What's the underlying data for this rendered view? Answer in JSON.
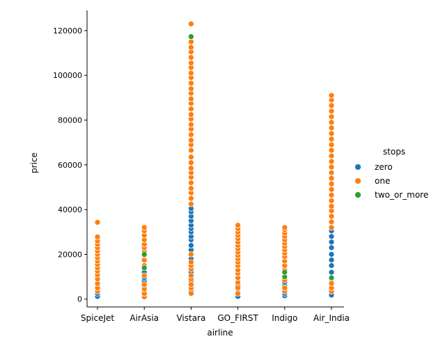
{
  "chart_data": {
    "type": "scatter",
    "title": "",
    "xlabel": "airline",
    "ylabel": "price",
    "categories": [
      "SpiceJet",
      "AirAsia",
      "Vistara",
      "GO_FIRST",
      "Indigo",
      "Air_India"
    ],
    "ylim": [
      -3500,
      129000
    ],
    "yticks": [
      0,
      20000,
      40000,
      60000,
      80000,
      100000,
      120000
    ],
    "ytick_labels": [
      "0",
      "20000",
      "40000",
      "60000",
      "80000",
      "100000",
      "120000"
    ],
    "grid": false,
    "legend": {
      "title": "stops",
      "placement": "right",
      "entries": [
        "zero",
        "one",
        "two_or_more"
      ]
    },
    "series": [
      {
        "name": "zero",
        "color": "#1f77b4",
        "points": [
          {
            "x": "SpiceJet",
            "y": 1200
          },
          {
            "x": "SpiceJet",
            "y": 2500
          },
          {
            "x": "SpiceJet",
            "y": 4500
          },
          {
            "x": "SpiceJet",
            "y": 6000
          },
          {
            "x": "SpiceJet",
            "y": 7500
          },
          {
            "x": "SpiceJet",
            "y": 8800
          },
          {
            "x": "SpiceJet",
            "y": 10000
          },
          {
            "x": "AirAsia",
            "y": 1600
          },
          {
            "x": "AirAsia",
            "y": 3500
          },
          {
            "x": "AirAsia",
            "y": 5500
          },
          {
            "x": "AirAsia",
            "y": 7000
          },
          {
            "x": "AirAsia",
            "y": 8000
          },
          {
            "x": "AirAsia",
            "y": 9500
          },
          {
            "x": "AirAsia",
            "y": 12000
          },
          {
            "x": "Vistara",
            "y": 3500
          },
          {
            "x": "Vistara",
            "y": 8000
          },
          {
            "x": "Vistara",
            "y": 12000
          },
          {
            "x": "Vistara",
            "y": 18000
          },
          {
            "x": "Vistara",
            "y": 22000
          },
          {
            "x": "Vistara",
            "y": 24000
          },
          {
            "x": "Vistara",
            "y": 26500
          },
          {
            "x": "Vistara",
            "y": 28000
          },
          {
            "x": "Vistara",
            "y": 30000
          },
          {
            "x": "Vistara",
            "y": 31500
          },
          {
            "x": "Vistara",
            "y": 33000
          },
          {
            "x": "Vistara",
            "y": 35000
          },
          {
            "x": "Vistara",
            "y": 37000
          },
          {
            "x": "Vistara",
            "y": 39000
          },
          {
            "x": "Vistara",
            "y": 40500
          },
          {
            "x": "GO_FIRST",
            "y": 1200
          },
          {
            "x": "GO_FIRST",
            "y": 3000
          },
          {
            "x": "GO_FIRST",
            "y": 4500
          },
          {
            "x": "GO_FIRST",
            "y": 6000
          },
          {
            "x": "Indigo",
            "y": 1500
          },
          {
            "x": "Indigo",
            "y": 2500
          },
          {
            "x": "Indigo",
            "y": 4500
          },
          {
            "x": "Indigo",
            "y": 6000
          },
          {
            "x": "Indigo",
            "y": 7500
          },
          {
            "x": "Air_India",
            "y": 1800
          },
          {
            "x": "Air_India",
            "y": 5500
          },
          {
            "x": "Air_India",
            "y": 9000
          },
          {
            "x": "Air_India",
            "y": 12000
          },
          {
            "x": "Air_India",
            "y": 15000
          },
          {
            "x": "Air_India",
            "y": 17500
          },
          {
            "x": "Air_India",
            "y": 20000
          },
          {
            "x": "Air_India",
            "y": 23000
          },
          {
            "x": "Air_India",
            "y": 25500
          },
          {
            "x": "Air_India",
            "y": 28000
          },
          {
            "x": "Air_India",
            "y": 30500
          }
        ]
      },
      {
        "name": "one",
        "color": "#ff7f0e",
        "points": [
          {
            "x": "SpiceJet",
            "y": 3500
          },
          {
            "x": "SpiceJet",
            "y": 5000
          },
          {
            "x": "SpiceJet",
            "y": 7000
          },
          {
            "x": "SpiceJet",
            "y": 9000
          },
          {
            "x": "SpiceJet",
            "y": 11000
          },
          {
            "x": "SpiceJet",
            "y": 12500
          },
          {
            "x": "SpiceJet",
            "y": 14000
          },
          {
            "x": "SpiceJet",
            "y": 15500
          },
          {
            "x": "SpiceJet",
            "y": 17000
          },
          {
            "x": "SpiceJet",
            "y": 18500
          },
          {
            "x": "SpiceJet",
            "y": 20000
          },
          {
            "x": "SpiceJet",
            "y": 21500
          },
          {
            "x": "SpiceJet",
            "y": 23000
          },
          {
            "x": "SpiceJet",
            "y": 24500
          },
          {
            "x": "SpiceJet",
            "y": 26000
          },
          {
            "x": "SpiceJet",
            "y": 27800
          },
          {
            "x": "SpiceJet",
            "y": 34300
          },
          {
            "x": "AirAsia",
            "y": 1000
          },
          {
            "x": "AirAsia",
            "y": 2500
          },
          {
            "x": "AirAsia",
            "y": 4500
          },
          {
            "x": "AirAsia",
            "y": 6500
          },
          {
            "x": "AirAsia",
            "y": 10500
          },
          {
            "x": "AirAsia",
            "y": 15000
          },
          {
            "x": "AirAsia",
            "y": 17500
          },
          {
            "x": "AirAsia",
            "y": 19500
          },
          {
            "x": "AirAsia",
            "y": 21500
          },
          {
            "x": "AirAsia",
            "y": 23000
          },
          {
            "x": "AirAsia",
            "y": 24500
          },
          {
            "x": "AirAsia",
            "y": 26500
          },
          {
            "x": "AirAsia",
            "y": 28500
          },
          {
            "x": "AirAsia",
            "y": 30500
          },
          {
            "x": "AirAsia",
            "y": 32000
          },
          {
            "x": "Vistara",
            "y": 2500
          },
          {
            "x": "Vistara",
            "y": 5000
          },
          {
            "x": "Vistara",
            "y": 6500
          },
          {
            "x": "Vistara",
            "y": 9000
          },
          {
            "x": "Vistara",
            "y": 10500
          },
          {
            "x": "Vistara",
            "y": 13500
          },
          {
            "x": "Vistara",
            "y": 15000
          },
          {
            "x": "Vistara",
            "y": 16500
          },
          {
            "x": "Vistara",
            "y": 20000
          },
          {
            "x": "Vistara",
            "y": 42500
          },
          {
            "x": "Vistara",
            "y": 45000
          },
          {
            "x": "Vistara",
            "y": 47500
          },
          {
            "x": "Vistara",
            "y": 49500
          },
          {
            "x": "Vistara",
            "y": 52000
          },
          {
            "x": "Vistara",
            "y": 54500
          },
          {
            "x": "Vistara",
            "y": 56500
          },
          {
            "x": "Vistara",
            "y": 58500
          },
          {
            "x": "Vistara",
            "y": 61000
          },
          {
            "x": "Vistara",
            "y": 63500
          },
          {
            "x": "Vistara",
            "y": 66500
          },
          {
            "x": "Vistara",
            "y": 69000
          },
          {
            "x": "Vistara",
            "y": 71000
          },
          {
            "x": "Vistara",
            "y": 73500
          },
          {
            "x": "Vistara",
            "y": 76000
          },
          {
            "x": "Vistara",
            "y": 78000
          },
          {
            "x": "Vistara",
            "y": 80500
          },
          {
            "x": "Vistara",
            "y": 82500
          },
          {
            "x": "Vistara",
            "y": 85000
          },
          {
            "x": "Vistara",
            "y": 87500
          },
          {
            "x": "Vistara",
            "y": 89500
          },
          {
            "x": "Vistara",
            "y": 92000
          },
          {
            "x": "Vistara",
            "y": 94000
          },
          {
            "x": "Vistara",
            "y": 96500
          },
          {
            "x": "Vistara",
            "y": 99000
          },
          {
            "x": "Vistara",
            "y": 101000
          },
          {
            "x": "Vistara",
            "y": 103500
          },
          {
            "x": "Vistara",
            "y": 105500
          },
          {
            "x": "Vistara",
            "y": 108000
          },
          {
            "x": "Vistara",
            "y": 110500
          },
          {
            "x": "Vistara",
            "y": 112500
          },
          {
            "x": "Vistara",
            "y": 115000
          },
          {
            "x": "Vistara",
            "y": 123000
          },
          {
            "x": "GO_FIRST",
            "y": 2500
          },
          {
            "x": "GO_FIRST",
            "y": 5000
          },
          {
            "x": "GO_FIRST",
            "y": 7500
          },
          {
            "x": "GO_FIRST",
            "y": 9500
          },
          {
            "x": "GO_FIRST",
            "y": 11500
          },
          {
            "x": "GO_FIRST",
            "y": 13000
          },
          {
            "x": "GO_FIRST",
            "y": 15000
          },
          {
            "x": "GO_FIRST",
            "y": 16500
          },
          {
            "x": "GO_FIRST",
            "y": 18000
          },
          {
            "x": "GO_FIRST",
            "y": 19500
          },
          {
            "x": "GO_FIRST",
            "y": 21000
          },
          {
            "x": "GO_FIRST",
            "y": 22500
          },
          {
            "x": "GO_FIRST",
            "y": 24000
          },
          {
            "x": "GO_FIRST",
            "y": 25500
          },
          {
            "x": "GO_FIRST",
            "y": 27000
          },
          {
            "x": "GO_FIRST",
            "y": 28500
          },
          {
            "x": "GO_FIRST",
            "y": 30000
          },
          {
            "x": "GO_FIRST",
            "y": 31500
          },
          {
            "x": "GO_FIRST",
            "y": 33000
          },
          {
            "x": "Indigo",
            "y": 3500
          },
          {
            "x": "Indigo",
            "y": 5000
          },
          {
            "x": "Indigo",
            "y": 8500
          },
          {
            "x": "Indigo",
            "y": 13000
          },
          {
            "x": "Indigo",
            "y": 15000
          },
          {
            "x": "Indigo",
            "y": 17000
          },
          {
            "x": "Indigo",
            "y": 19000
          },
          {
            "x": "Indigo",
            "y": 20500
          },
          {
            "x": "Indigo",
            "y": 22000
          },
          {
            "x": "Indigo",
            "y": 23500
          },
          {
            "x": "Indigo",
            "y": 25000
          },
          {
            "x": "Indigo",
            "y": 26500
          },
          {
            "x": "Indigo",
            "y": 28000
          },
          {
            "x": "Indigo",
            "y": 29500
          },
          {
            "x": "Indigo",
            "y": 31000
          },
          {
            "x": "Indigo",
            "y": 32000
          },
          {
            "x": "Air_India",
            "y": 3500
          },
          {
            "x": "Air_India",
            "y": 5000
          },
          {
            "x": "Air_India",
            "y": 7000
          },
          {
            "x": "Air_India",
            "y": 32000
          },
          {
            "x": "Air_India",
            "y": 34500
          },
          {
            "x": "Air_India",
            "y": 37000
          },
          {
            "x": "Air_India",
            "y": 39500
          },
          {
            "x": "Air_India",
            "y": 41500
          },
          {
            "x": "Air_India",
            "y": 44000
          },
          {
            "x": "Air_India",
            "y": 46500
          },
          {
            "x": "Air_India",
            "y": 49000
          },
          {
            "x": "Air_India",
            "y": 51500
          },
          {
            "x": "Air_India",
            "y": 54000
          },
          {
            "x": "Air_India",
            "y": 56500
          },
          {
            "x": "Air_India",
            "y": 59000
          },
          {
            "x": "Air_India",
            "y": 61500
          },
          {
            "x": "Air_India",
            "y": 64000
          },
          {
            "x": "Air_India",
            "y": 66500
          },
          {
            "x": "Air_India",
            "y": 69000
          },
          {
            "x": "Air_India",
            "y": 71500
          },
          {
            "x": "Air_India",
            "y": 74000
          },
          {
            "x": "Air_India",
            "y": 76500
          },
          {
            "x": "Air_India",
            "y": 79000
          },
          {
            "x": "Air_India",
            "y": 81500
          },
          {
            "x": "Air_India",
            "y": 84000
          },
          {
            "x": "Air_India",
            "y": 86500
          },
          {
            "x": "Air_India",
            "y": 89000
          },
          {
            "x": "Air_India",
            "y": 91000
          }
        ]
      },
      {
        "name": "two_or_more",
        "color": "#2ca02c",
        "points": [
          {
            "x": "AirAsia",
            "y": 14000
          },
          {
            "x": "AirAsia",
            "y": 20000
          },
          {
            "x": "Vistara",
            "y": 117300
          },
          {
            "x": "Indigo",
            "y": 10000
          },
          {
            "x": "Indigo",
            "y": 12000
          },
          {
            "x": "Air_India",
            "y": 9500
          }
        ]
      }
    ]
  }
}
